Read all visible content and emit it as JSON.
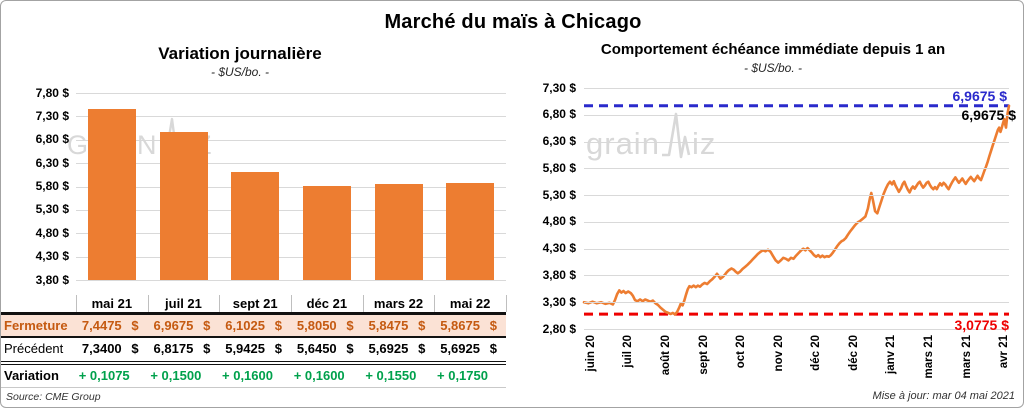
{
  "page": {
    "title": "Marché du maïs à Chicago",
    "source": "Source: CME Group",
    "updated": "Mise à jour: mar 04 mai 2021",
    "watermark": {
      "part1": "grain",
      "part2": "iz"
    }
  },
  "colors": {
    "orange": "#ED7D31",
    "blue": "#2A2ACC",
    "red": "#EE0000",
    "green": "#00A14C",
    "fermeture_text": "#C55A11",
    "fermeture_bg": "#FBE2D5",
    "grid": "#D9D9D9",
    "watermark": "#D8D8D8"
  },
  "left_table": {
    "rows": [
      {
        "label": "Fermeture",
        "style": "fermeture",
        "unit": "$",
        "values": [
          "7,4475",
          "6,9675",
          "6,1025",
          "5,8050",
          "5,8475",
          "5,8675"
        ]
      },
      {
        "label": "Précédent",
        "style": "precedent",
        "unit": "$",
        "values": [
          "7,3400",
          "6,8175",
          "5,9425",
          "5,6450",
          "5,6925",
          "5,6925"
        ]
      },
      {
        "label": "Variation",
        "style": "variation",
        "unit": "",
        "values": [
          "+ 0,1075",
          "+ 0,1500",
          "+ 0,1600",
          "+ 0,1600",
          "+ 0,1550",
          "+ 0,1750"
        ]
      }
    ]
  },
  "chart_data": [
    {
      "type": "bar",
      "title": "Variation journalière",
      "subtitle": "- $US/bo. -",
      "categories": [
        "mai 21",
        "juil 21",
        "sept 21",
        "déc 21",
        "mars 22",
        "mai 22"
      ],
      "values": [
        7.4475,
        6.9675,
        6.1025,
        5.805,
        5.8475,
        5.8675
      ],
      "ylim": [
        3.8,
        7.8
      ],
      "ytick_labels": [
        "7,80 $",
        "7,30 $",
        "6,80 $",
        "6,30 $",
        "5,80 $",
        "5,30 $",
        "4,80 $",
        "4,30 $",
        "3,80 $"
      ],
      "bar_color": "#ED7D31",
      "grid": true,
      "legend": "none"
    },
    {
      "type": "line",
      "title": "Comportement échéance immédiate depuis 1 an",
      "subtitle": "- $US/bo. -",
      "x_tick_labels": [
        "juin 20",
        "juil 20",
        "août 20",
        "sept 20",
        "oct 20",
        "nov 20",
        "déc 20",
        "déc 20",
        "janv 21",
        "mars 21",
        "mars 21",
        "avr 21"
      ],
      "ylim": [
        2.8,
        7.3
      ],
      "ytick_labels": [
        "7,30 $",
        "6,80 $",
        "6,30 $",
        "5,80 $",
        "5,30 $",
        "4,80 $",
        "4,30 $",
        "3,80 $",
        "3,30 $",
        "2,80 $"
      ],
      "line_color": "#ED7D31",
      "grid": true,
      "max_line": {
        "value": 6.9675,
        "label": "6,9675 $",
        "color": "#2A2ACC"
      },
      "last_label": {
        "value": 6.9675,
        "label": "6,9675 $",
        "color": "#000000"
      },
      "min_line": {
        "value": 3.0775,
        "label": "3,0775 $",
        "color": "#EE0000"
      },
      "points": [
        [
          0.0,
          3.3
        ],
        [
          0.01,
          3.28
        ],
        [
          0.02,
          3.31
        ],
        [
          0.03,
          3.28
        ],
        [
          0.04,
          3.3
        ],
        [
          0.05,
          3.27
        ],
        [
          0.06,
          3.29
        ],
        [
          0.068,
          3.26
        ],
        [
          0.073,
          3.34
        ],
        [
          0.078,
          3.45
        ],
        [
          0.083,
          3.52
        ],
        [
          0.088,
          3.48
        ],
        [
          0.093,
          3.51
        ],
        [
          0.098,
          3.47
        ],
        [
          0.104,
          3.5
        ],
        [
          0.11,
          3.47
        ],
        [
          0.115,
          3.42
        ],
        [
          0.12,
          3.34
        ],
        [
          0.126,
          3.32
        ],
        [
          0.132,
          3.35
        ],
        [
          0.138,
          3.32
        ],
        [
          0.144,
          3.35
        ],
        [
          0.15,
          3.33
        ],
        [
          0.156,
          3.31
        ],
        [
          0.162,
          3.33
        ],
        [
          0.168,
          3.28
        ],
        [
          0.174,
          3.25
        ],
        [
          0.18,
          3.2
        ],
        [
          0.186,
          3.16
        ],
        [
          0.192,
          3.12
        ],
        [
          0.198,
          3.1
        ],
        [
          0.204,
          3.08
        ],
        [
          0.209,
          3.1
        ],
        [
          0.214,
          3.07
        ],
        [
          0.219,
          3.12
        ],
        [
          0.224,
          3.2
        ],
        [
          0.228,
          3.28
        ],
        [
          0.232,
          3.24
        ],
        [
          0.236,
          3.33
        ],
        [
          0.24,
          3.44
        ],
        [
          0.244,
          3.54
        ],
        [
          0.248,
          3.6
        ],
        [
          0.253,
          3.58
        ],
        [
          0.258,
          3.61
        ],
        [
          0.263,
          3.58
        ],
        [
          0.268,
          3.61
        ],
        [
          0.273,
          3.59
        ],
        [
          0.278,
          3.63
        ],
        [
          0.284,
          3.66
        ],
        [
          0.29,
          3.64
        ],
        [
          0.296,
          3.69
        ],
        [
          0.302,
          3.73
        ],
        [
          0.308,
          3.78
        ],
        [
          0.313,
          3.83
        ],
        [
          0.317,
          3.79
        ],
        [
          0.321,
          3.74
        ],
        [
          0.326,
          3.77
        ],
        [
          0.331,
          3.81
        ],
        [
          0.336,
          3.86
        ],
        [
          0.341,
          3.9
        ],
        [
          0.347,
          3.93
        ],
        [
          0.352,
          3.91
        ],
        [
          0.357,
          3.87
        ],
        [
          0.362,
          3.84
        ],
        [
          0.367,
          3.87
        ],
        [
          0.373,
          3.92
        ],
        [
          0.379,
          3.96
        ],
        [
          0.385,
          4.0
        ],
        [
          0.391,
          4.05
        ],
        [
          0.397,
          4.1
        ],
        [
          0.403,
          4.15
        ],
        [
          0.409,
          4.2
        ],
        [
          0.415,
          4.24
        ],
        [
          0.421,
          4.27
        ],
        [
          0.427,
          4.25
        ],
        [
          0.433,
          4.28
        ],
        [
          0.439,
          4.24
        ],
        [
          0.445,
          4.16
        ],
        [
          0.451,
          4.08
        ],
        [
          0.457,
          4.04
        ],
        [
          0.463,
          4.08
        ],
        [
          0.469,
          4.13
        ],
        [
          0.475,
          4.11
        ],
        [
          0.481,
          4.08
        ],
        [
          0.487,
          4.13
        ],
        [
          0.493,
          4.11
        ],
        [
          0.499,
          4.17
        ],
        [
          0.505,
          4.22
        ],
        [
          0.511,
          4.27
        ],
        [
          0.516,
          4.3
        ],
        [
          0.521,
          4.27
        ],
        [
          0.526,
          4.31
        ],
        [
          0.531,
          4.27
        ],
        [
          0.536,
          4.23
        ],
        [
          0.541,
          4.18
        ],
        [
          0.546,
          4.15
        ],
        [
          0.551,
          4.18
        ],
        [
          0.556,
          4.14
        ],
        [
          0.561,
          4.17
        ],
        [
          0.566,
          4.14
        ],
        [
          0.571,
          4.16
        ],
        [
          0.576,
          4.15
        ],
        [
          0.581,
          4.18
        ],
        [
          0.586,
          4.23
        ],
        [
          0.591,
          4.29
        ],
        [
          0.596,
          4.35
        ],
        [
          0.601,
          4.4
        ],
        [
          0.606,
          4.44
        ],
        [
          0.611,
          4.46
        ],
        [
          0.616,
          4.5
        ],
        [
          0.621,
          4.56
        ],
        [
          0.626,
          4.62
        ],
        [
          0.632,
          4.68
        ],
        [
          0.638,
          4.74
        ],
        [
          0.644,
          4.79
        ],
        [
          0.65,
          4.82
        ],
        [
          0.656,
          4.86
        ],
        [
          0.662,
          4.9
        ],
        [
          0.668,
          5.05
        ],
        [
          0.673,
          5.25
        ],
        [
          0.676,
          5.34
        ],
        [
          0.68,
          5.2
        ],
        [
          0.685,
          5.0
        ],
        [
          0.69,
          4.96
        ],
        [
          0.695,
          5.08
        ],
        [
          0.7,
          5.2
        ],
        [
          0.705,
          5.32
        ],
        [
          0.71,
          5.42
        ],
        [
          0.715,
          5.5
        ],
        [
          0.72,
          5.55
        ],
        [
          0.725,
          5.5
        ],
        [
          0.729,
          5.56
        ],
        [
          0.733,
          5.48
        ],
        [
          0.737,
          5.42
        ],
        [
          0.741,
          5.36
        ],
        [
          0.746,
          5.43
        ],
        [
          0.75,
          5.51
        ],
        [
          0.754,
          5.55
        ],
        [
          0.758,
          5.47
        ],
        [
          0.762,
          5.4
        ],
        [
          0.766,
          5.35
        ],
        [
          0.77,
          5.42
        ],
        [
          0.774,
          5.46
        ],
        [
          0.778,
          5.42
        ],
        [
          0.782,
          5.47
        ],
        [
          0.786,
          5.52
        ],
        [
          0.79,
          5.55
        ],
        [
          0.794,
          5.49
        ],
        [
          0.798,
          5.44
        ],
        [
          0.802,
          5.48
        ],
        [
          0.806,
          5.53
        ],
        [
          0.81,
          5.55
        ],
        [
          0.814,
          5.49
        ],
        [
          0.818,
          5.44
        ],
        [
          0.822,
          5.41
        ],
        [
          0.826,
          5.45
        ],
        [
          0.83,
          5.41
        ],
        [
          0.834,
          5.47
        ],
        [
          0.838,
          5.52
        ],
        [
          0.842,
          5.48
        ],
        [
          0.846,
          5.53
        ],
        [
          0.85,
          5.5
        ],
        [
          0.854,
          5.45
        ],
        [
          0.858,
          5.41
        ],
        [
          0.862,
          5.48
        ],
        [
          0.866,
          5.54
        ],
        [
          0.87,
          5.59
        ],
        [
          0.874,
          5.63
        ],
        [
          0.878,
          5.58
        ],
        [
          0.882,
          5.53
        ],
        [
          0.886,
          5.57
        ],
        [
          0.89,
          5.61
        ],
        [
          0.894,
          5.56
        ],
        [
          0.898,
          5.51
        ],
        [
          0.902,
          5.56
        ],
        [
          0.906,
          5.6
        ],
        [
          0.91,
          5.64
        ],
        [
          0.914,
          5.6
        ],
        [
          0.918,
          5.56
        ],
        [
          0.922,
          5.61
        ],
        [
          0.926,
          5.66
        ],
        [
          0.93,
          5.61
        ],
        [
          0.934,
          5.58
        ],
        [
          0.938,
          5.66
        ],
        [
          0.942,
          5.75
        ],
        [
          0.946,
          5.83
        ],
        [
          0.95,
          5.93
        ],
        [
          0.954,
          6.03
        ],
        [
          0.958,
          6.13
        ],
        [
          0.962,
          6.23
        ],
        [
          0.966,
          6.33
        ],
        [
          0.97,
          6.43
        ],
        [
          0.974,
          6.52
        ],
        [
          0.977,
          6.56
        ],
        [
          0.98,
          6.48
        ],
        [
          0.983,
          6.56
        ],
        [
          0.986,
          6.65
        ],
        [
          0.989,
          6.72
        ],
        [
          0.991,
          6.62
        ],
        [
          0.993,
          6.56
        ],
        [
          0.995,
          6.72
        ],
        [
          0.997,
          6.84
        ],
        [
          1.0,
          6.9675
        ]
      ]
    }
  ]
}
